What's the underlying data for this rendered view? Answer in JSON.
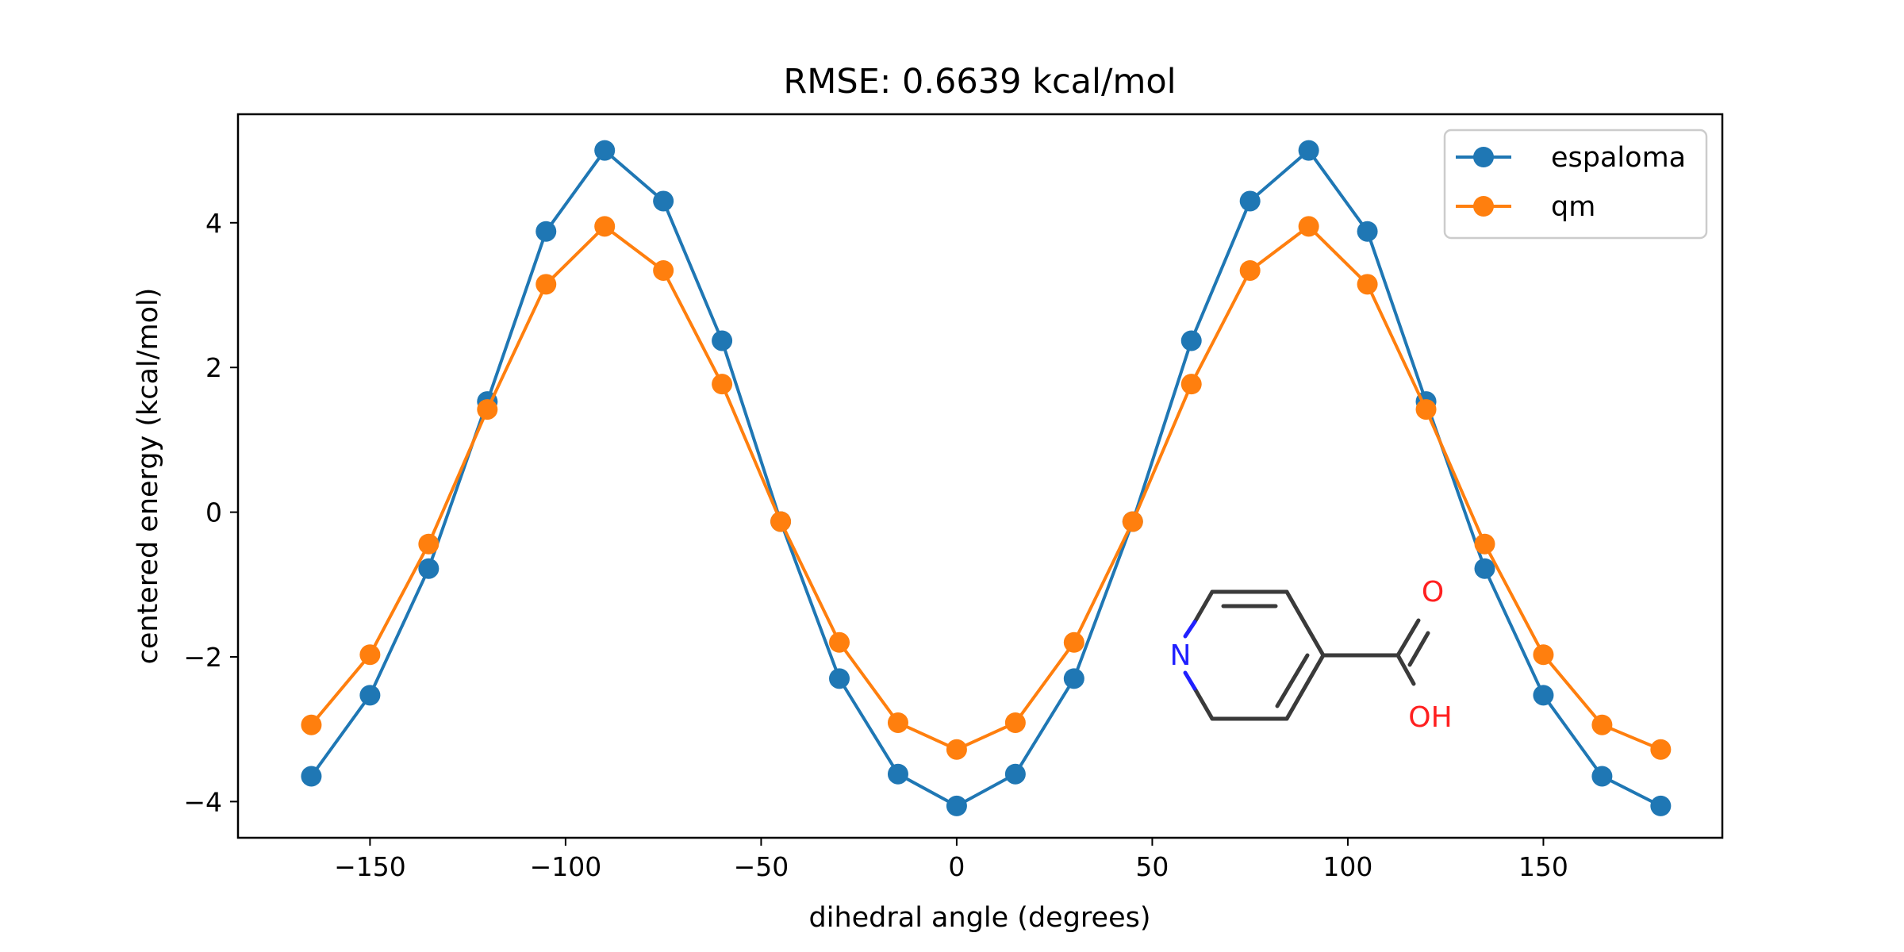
{
  "chart_data": {
    "type": "line",
    "title": "RMSE: 0.6639 kcal/mol",
    "xlabel": "dihedral angle (degrees)",
    "ylabel": "centered energy (kcal/mol)",
    "xlim": [
      -183.75,
      195.75
    ],
    "ylim": [
      -4.5,
      5.5
    ],
    "xticks": [
      -150,
      -100,
      -50,
      0,
      50,
      100,
      150
    ],
    "yticks": [
      -4,
      -2,
      0,
      2,
      4
    ],
    "xtick_labels": [
      "−150",
      "−100",
      "−50",
      "0",
      "50",
      "100",
      "150"
    ],
    "ytick_labels": [
      "−4",
      "−2",
      "0",
      "2",
      "4"
    ],
    "grid": false,
    "legend_position": "top-right",
    "x": [
      -165,
      -150,
      -135,
      -120,
      -105,
      -90,
      -75,
      -60,
      -45,
      -30,
      -15,
      0,
      15,
      30,
      45,
      60,
      75,
      90,
      105,
      120,
      135,
      150,
      165,
      180
    ],
    "series": [
      {
        "name": "espaloma",
        "color": "#1f77b4",
        "values": [
          -3.65,
          -2.53,
          -0.78,
          1.53,
          3.88,
          5.0,
          4.3,
          2.37,
          -0.13,
          -2.3,
          -3.62,
          -4.06,
          -3.62,
          -2.3,
          -0.13,
          2.37,
          4.3,
          5.0,
          3.88,
          1.53,
          -0.78,
          -2.53,
          -3.65,
          -4.06
        ]
      },
      {
        "name": "qm",
        "color": "#ff7f0e",
        "values": [
          -2.94,
          -1.97,
          -0.44,
          1.42,
          3.15,
          3.95,
          3.34,
          1.77,
          -0.13,
          -1.8,
          -2.91,
          -3.28,
          -2.91,
          -1.8,
          -0.13,
          1.77,
          3.34,
          3.95,
          3.15,
          1.42,
          -0.44,
          -1.97,
          -2.94,
          -3.28
        ]
      }
    ],
    "inset_molecule": {
      "name": "pyridine-4-carboxylic acid structure",
      "atom_labels": [
        "N",
        "O",
        "OH"
      ],
      "colors": {
        "bond": "#3a3a3a",
        "nitrogen": "#2020ff",
        "oxygen": "#ff2020"
      }
    }
  }
}
